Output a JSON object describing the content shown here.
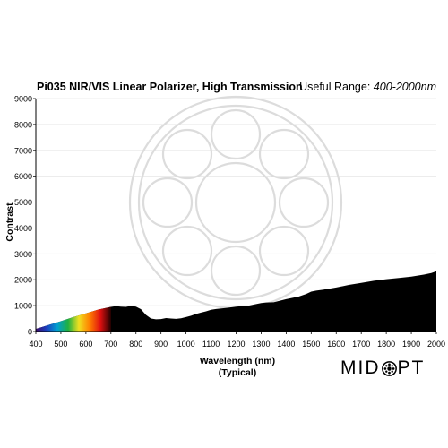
{
  "header": {
    "title": "Pi035 NIR/VIS Linear Polarizer, High Transmission",
    "range_label": "Useful Range:",
    "range_value": "400-2000nm"
  },
  "logo": {
    "left": "MID",
    "right": "PT",
    "icon": "midopt-lens-icon"
  },
  "chart_data": {
    "type": "area",
    "title": "Pi035 NIR/VIS Linear Polarizer, High Transmission",
    "xlabel": "Wavelength (nm)",
    "xlabel_sub": "(Typical)",
    "ylabel": "Contrast",
    "xlim": [
      400,
      2000
    ],
    "ylim": [
      0,
      9000
    ],
    "xticks": [
      400,
      500,
      600,
      700,
      800,
      900,
      1000,
      1100,
      1200,
      1300,
      1400,
      1500,
      1600,
      1700,
      1800,
      1900,
      2000
    ],
    "yticks": [
      0,
      1000,
      2000,
      3000,
      4000,
      5000,
      6000,
      7000,
      8000,
      9000
    ],
    "grid": true,
    "fill_color": "#000000",
    "spectrum_colors": [
      "#3a0a6a",
      "#1a3fbf",
      "#00a0d0",
      "#20b040",
      "#f0e020",
      "#ff8000",
      "#e01010",
      "#200000"
    ],
    "series": [
      {
        "x": [
          400,
          450,
          500,
          550,
          600,
          650,
          700,
          720,
          740,
          760,
          780,
          800,
          820,
          840,
          860,
          880,
          900,
          920,
          940,
          960,
          980,
          1000,
          1020,
          1040,
          1060,
          1080,
          1100,
          1120,
          1150,
          1200,
          1250,
          1280,
          1300,
          1320,
          1350,
          1400,
          1450,
          1480,
          1500,
          1520,
          1550,
          1600,
          1650,
          1700,
          1750,
          1800,
          1850,
          1900,
          1950,
          1980,
          2000
        ],
        "y": [
          100,
          250,
          400,
          560,
          700,
          850,
          950,
          980,
          960,
          950,
          990,
          960,
          860,
          640,
          500,
          470,
          480,
          520,
          500,
          490,
          510,
          560,
          610,
          680,
          730,
          780,
          840,
          870,
          900,
          960,
          1000,
          1060,
          1100,
          1120,
          1130,
          1250,
          1350,
          1450,
          1540,
          1580,
          1620,
          1700,
          1800,
          1880,
          1960,
          2020,
          2070,
          2120,
          2200,
          2260,
          2330
        ]
      }
    ]
  }
}
